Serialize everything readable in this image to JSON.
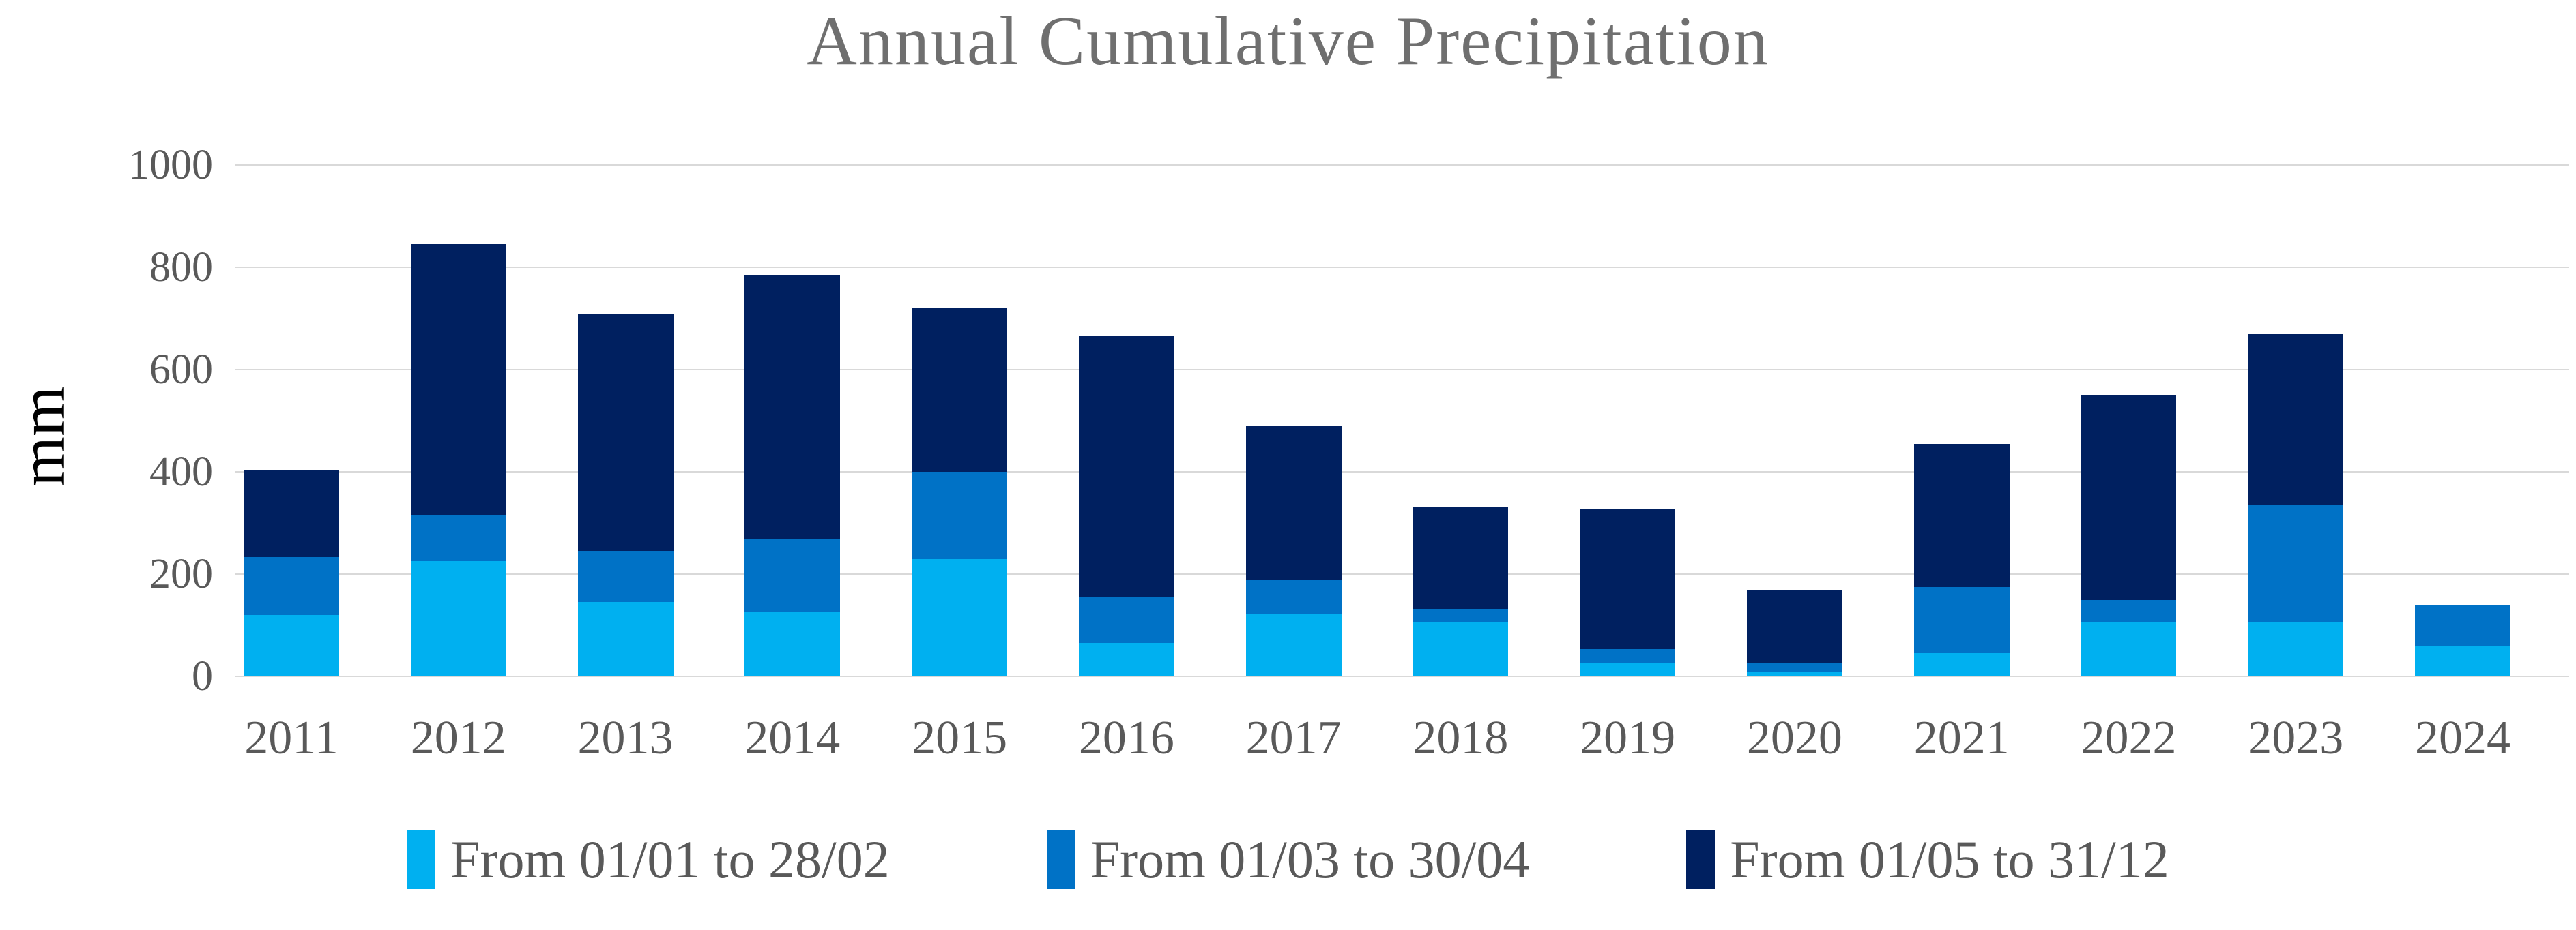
{
  "chart_data": {
    "type": "bar",
    "stacked": true,
    "title": "Annual Cumulative Precipitation",
    "xlabel": "",
    "ylabel": "mm",
    "ylim": [
      0,
      1000
    ],
    "yticks": [
      0,
      200,
      400,
      600,
      800,
      1000
    ],
    "grid": true,
    "legend_position": "bottom",
    "categories": [
      "2011",
      "2012",
      "2013",
      "2014",
      "2015",
      "2016",
      "2017",
      "2018",
      "2019",
      "2020",
      "2021",
      "2022",
      "2023",
      "2024"
    ],
    "series": [
      {
        "name": "From 01/01 to 28/02",
        "color": "#00B0F0",
        "values": [
          120,
          225,
          145,
          125,
          230,
          65,
          122,
          105,
          25,
          10,
          45,
          105,
          105,
          60
        ]
      },
      {
        "name": "From 01/03 to 30/04",
        "color": "#0072C6",
        "values": [
          113,
          90,
          100,
          145,
          170,
          90,
          66,
          27,
          28,
          15,
          130,
          45,
          230,
          80
        ]
      },
      {
        "name": "From 01/05 to 31/12",
        "color": "#002060",
        "values": [
          170,
          530,
          465,
          515,
          320,
          510,
          302,
          200,
          275,
          145,
          280,
          400,
          335,
          0
        ]
      }
    ],
    "totals": [
      403,
      845,
      710,
      785,
      720,
      665,
      490,
      332,
      328,
      170,
      455,
      550,
      670,
      140
    ]
  },
  "style": {
    "gridline_color": "#d9d9d9",
    "title_color": "#6f6f6f",
    "tick_color": "#595959",
    "ylabel_color": "#000000"
  }
}
